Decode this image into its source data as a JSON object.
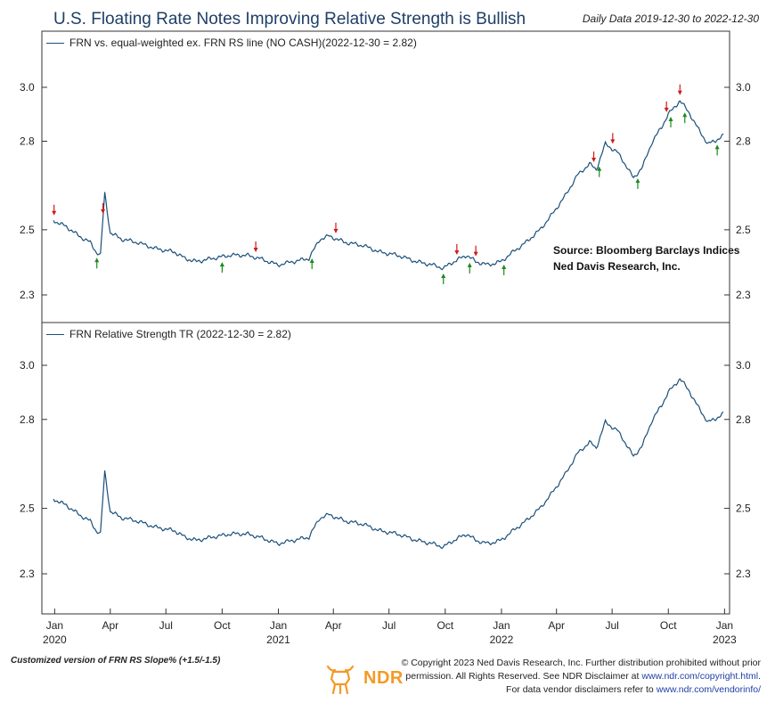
{
  "header": {
    "title": "U.S. Floating Rate Notes Improving Relative Strength is Bullish",
    "date_range": "Daily Data 2019-12-30 to 2022-12-30"
  },
  "source": {
    "label": "Source:",
    "line1": "Bloomberg Barclays Indices",
    "line2": "Ned Davis Research, Inc."
  },
  "footer": {
    "left_note": "Customized version of FRN RS Slope% (+1.5/-1.5)",
    "logo_text": "NDR",
    "copyright_line1": "© Copyright 2023 Ned Davis Research, Inc. Further distribution prohibited without prior",
    "copyright_line2_prefix": "permission. All Rights Reserved. See NDR Disclaimer at",
    "copyright_line2_link": "www.ndr.com/copyright.html",
    "copyright_line2_suffix": ".",
    "copyright_line3_prefix": "For data vendor disclaimers refer to",
    "copyright_line3_link": "www.ndr.com/vendorinfo/"
  },
  "colors": {
    "line": "#1b4f7a",
    "up_arrow": "#1a8a1a",
    "down_arrow": "#d21a1a",
    "title": "#1f3f66",
    "logo": "#f39a25"
  },
  "chart_data": [
    {
      "type": "line",
      "legend": "FRN vs. equal-weighted ex. FRN RS line (NO CASH)(2022-12-30 = 2.82)",
      "y_scale": "log",
      "y_ticks": [
        2.3,
        2.5,
        2.8,
        3.0
      ],
      "y_tick_labels": [
        "2.3",
        "2.5",
        "2.8",
        "3.0"
      ],
      "series": [
        {
          "name": "FRN vs. equal-weighted ex. FRN RS line (NO CASH)",
          "points": [
            [
              "2019-12-30",
              2.53
            ],
            [
              "2020-01-20",
              2.51
            ],
            [
              "2020-02-10",
              2.48
            ],
            [
              "2020-02-28",
              2.46
            ],
            [
              "2020-03-09",
              2.43
            ],
            [
              "2020-03-16",
              2.42
            ],
            [
              "2020-03-23",
              2.62
            ],
            [
              "2020-03-27",
              2.56
            ],
            [
              "2020-04-01",
              2.49
            ],
            [
              "2020-04-20",
              2.47
            ],
            [
              "2020-05-15",
              2.46
            ],
            [
              "2020-06-15",
              2.44
            ],
            [
              "2020-07-15",
              2.43
            ],
            [
              "2020-08-01",
              2.41
            ],
            [
              "2020-08-20",
              2.4
            ],
            [
              "2020-09-15",
              2.41
            ],
            [
              "2020-10-15",
              2.42
            ],
            [
              "2020-11-10",
              2.42
            ],
            [
              "2020-12-01",
              2.41
            ],
            [
              "2020-12-31",
              2.39
            ],
            [
              "2021-01-25",
              2.4
            ],
            [
              "2021-02-20",
              2.41
            ],
            [
              "2021-03-10",
              2.47
            ],
            [
              "2021-03-25",
              2.48
            ],
            [
              "2021-04-20",
              2.46
            ],
            [
              "2021-05-20",
              2.45
            ],
            [
              "2021-06-15",
              2.43
            ],
            [
              "2021-07-15",
              2.42
            ],
            [
              "2021-08-15",
              2.4
            ],
            [
              "2021-09-10",
              2.39
            ],
            [
              "2021-09-28",
              2.38
            ],
            [
              "2021-10-15",
              2.4
            ],
            [
              "2021-11-05",
              2.42
            ],
            [
              "2021-11-20",
              2.4
            ],
            [
              "2021-12-10",
              2.39
            ],
            [
              "2021-12-31",
              2.4
            ],
            [
              "2022-01-20",
              2.43
            ],
            [
              "2022-02-10",
              2.46
            ],
            [
              "2022-03-05",
              2.5
            ],
            [
              "2022-03-25",
              2.55
            ],
            [
              "2022-04-15",
              2.61
            ],
            [
              "2022-05-05",
              2.68
            ],
            [
              "2022-05-25",
              2.72
            ],
            [
              "2022-06-05",
              2.7
            ],
            [
              "2022-06-20",
              2.79
            ],
            [
              "2022-07-10",
              2.76
            ],
            [
              "2022-07-25",
              2.71
            ],
            [
              "2022-08-05",
              2.67
            ],
            [
              "2022-08-20",
              2.71
            ],
            [
              "2022-09-05",
              2.8
            ],
            [
              "2022-09-20",
              2.85
            ],
            [
              "2022-10-01",
              2.9
            ],
            [
              "2022-10-10",
              2.92
            ],
            [
              "2022-10-20",
              2.95
            ],
            [
              "2022-11-05",
              2.9
            ],
            [
              "2022-11-20",
              2.84
            ],
            [
              "2022-12-05",
              2.79
            ],
            [
              "2022-12-15",
              2.8
            ],
            [
              "2022-12-30",
              2.82
            ]
          ]
        }
      ],
      "buy_signals": [
        "2020-03-10",
        "2020-10-01",
        "2021-02-25",
        "2021-09-28",
        "2021-11-10",
        "2022-01-05",
        "2022-06-10",
        "2022-08-12",
        "2022-10-05",
        "2022-10-28",
        "2022-12-20"
      ],
      "sell_signals": [
        "2019-12-31",
        "2020-03-20",
        "2020-11-25",
        "2021-04-05",
        "2021-10-20",
        "2021-11-20",
        "2022-06-01",
        "2022-07-02",
        "2022-09-28",
        "2022-10-20"
      ]
    },
    {
      "type": "line",
      "legend": "FRN Relative Strength TR (2022-12-30 = 2.82)",
      "y_scale": "log",
      "y_ticks": [
        2.3,
        2.5,
        2.8,
        3.0
      ],
      "y_tick_labels": [
        "2.3",
        "2.5",
        "2.8",
        "3.0"
      ],
      "series": [
        {
          "name": "FRN Relative Strength TR",
          "points": "same_as_panel_1"
        }
      ],
      "x_ticks": [
        "Jan",
        "Apr",
        "Jul",
        "Oct",
        "Jan",
        "Apr",
        "Jul",
        "Oct",
        "Jan",
        "Apr",
        "Jul",
        "Oct",
        "Jan"
      ],
      "x_tick_dates": [
        "2020-01-01",
        "2020-04-01",
        "2020-07-01",
        "2020-10-01",
        "2021-01-01",
        "2021-04-01",
        "2021-07-01",
        "2021-10-01",
        "2022-01-01",
        "2022-04-01",
        "2022-07-01",
        "2022-10-01",
        "2023-01-01"
      ],
      "x_year_labels": [
        "2020",
        "2021",
        "2022",
        "2023"
      ],
      "x_year_dates": [
        "2020-01-01",
        "2021-01-01",
        "2022-01-01",
        "2023-01-01"
      ]
    }
  ]
}
